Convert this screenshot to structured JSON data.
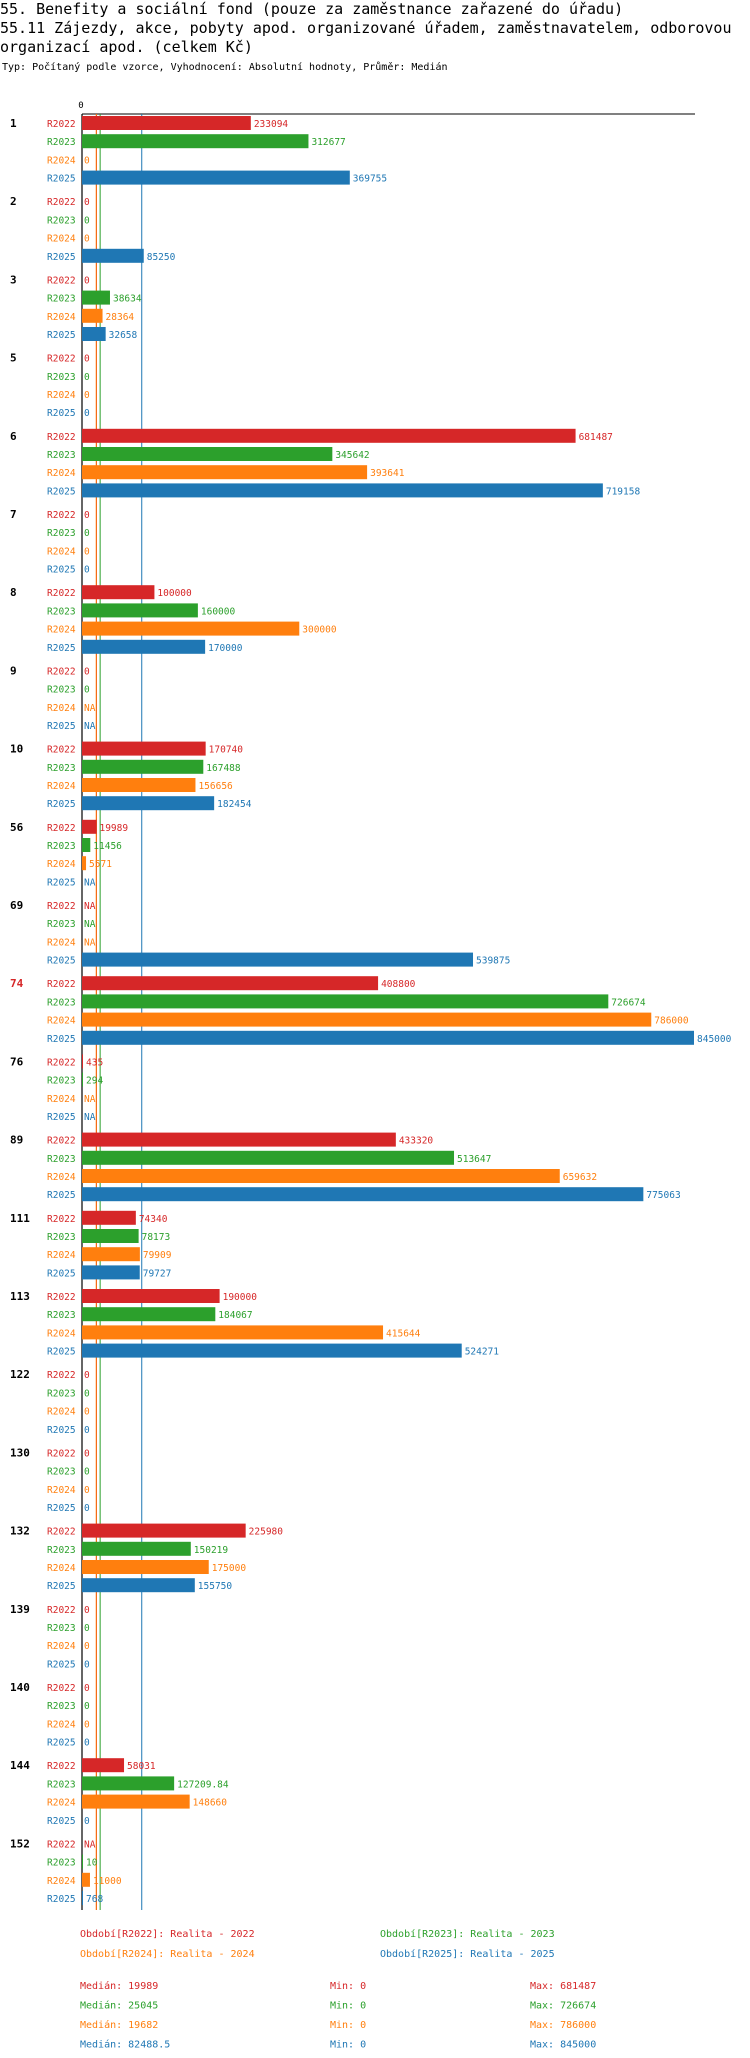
{
  "title": "55. Benefity a sociální fond (pouze za zaměstnance zařazené do úřadu)",
  "subtitle_lines": [
    "55.11 Zájezdy, akce, pobyty apod. organizované úřadem, zaměstnavatelem, odborovou",
    " organizací apod. (celkem Kč)"
  ],
  "meta": "Typ: Počítaný podle vzorce, Vyhodnocení: Absolutní hodnoty, Průměr: Medián",
  "colors": {
    "R2022": "#d62728",
    "R2023": "#2ca02c",
    "R2024": "#ff7f0e",
    "R2025": "#1f77b4",
    "highlight": "#d62728"
  },
  "chart_data": {
    "type": "bar",
    "orientation": "horizontal",
    "axis_zero_label": "0",
    "xlim": [
      0,
      845000
    ],
    "series_names": [
      "R2022",
      "R2023",
      "R2024",
      "R2025"
    ],
    "groups": [
      {
        "id": "1",
        "highlight": false,
        "values": [
          233094,
          312677,
          0,
          369755
        ],
        "labels": [
          "233094",
          "312677",
          "0",
          "369755"
        ]
      },
      {
        "id": "2",
        "highlight": false,
        "values": [
          0,
          0,
          0,
          85250
        ],
        "labels": [
          "0",
          "0",
          "0",
          "85250"
        ]
      },
      {
        "id": "3",
        "highlight": false,
        "values": [
          0,
          38634,
          28364,
          32658
        ],
        "labels": [
          "0",
          "38634",
          "28364",
          "32658"
        ]
      },
      {
        "id": "5",
        "highlight": false,
        "values": [
          0,
          0,
          0,
          0
        ],
        "labels": [
          "0",
          "0",
          "0",
          "0"
        ]
      },
      {
        "id": "6",
        "highlight": false,
        "values": [
          681487,
          345642,
          393641,
          719158
        ],
        "labels": [
          "681487",
          "345642",
          "393641",
          "719158"
        ]
      },
      {
        "id": "7",
        "highlight": false,
        "values": [
          0,
          0,
          0,
          0
        ],
        "labels": [
          "0",
          "0",
          "0",
          "0"
        ]
      },
      {
        "id": "8",
        "highlight": false,
        "values": [
          100000,
          160000,
          300000,
          170000
        ],
        "labels": [
          "100000",
          "160000",
          "300000",
          "170000"
        ]
      },
      {
        "id": "9",
        "highlight": false,
        "values": [
          0,
          0,
          null,
          null
        ],
        "labels": [
          "0",
          "0",
          "NA",
          "NA"
        ]
      },
      {
        "id": "10",
        "highlight": false,
        "values": [
          170740,
          167488,
          156656,
          182454
        ],
        "labels": [
          "170740",
          "167488",
          "156656",
          "182454"
        ]
      },
      {
        "id": "56",
        "highlight": false,
        "values": [
          19989,
          11456,
          5571,
          null
        ],
        "labels": [
          "19989",
          "11456",
          "5571",
          "NA"
        ]
      },
      {
        "id": "69",
        "highlight": false,
        "values": [
          null,
          null,
          null,
          539875
        ],
        "labels": [
          "NA",
          "NA",
          "NA",
          "539875"
        ]
      },
      {
        "id": "74",
        "highlight": true,
        "values": [
          408800,
          726674,
          786000,
          845000
        ],
        "labels": [
          "408800",
          "726674",
          "786000",
          "845000"
        ]
      },
      {
        "id": "76",
        "highlight": false,
        "values": [
          435,
          294,
          null,
          null
        ],
        "labels": [
          "435",
          "294",
          "NA",
          "NA"
        ]
      },
      {
        "id": "89",
        "highlight": false,
        "values": [
          433320,
          513647,
          659632,
          775063
        ],
        "labels": [
          "433320",
          "513647",
          "659632",
          "775063"
        ]
      },
      {
        "id": "111",
        "highlight": false,
        "values": [
          74340,
          78173,
          79909,
          79727
        ],
        "labels": [
          "74340",
          "78173",
          "79909",
          "79727"
        ]
      },
      {
        "id": "113",
        "highlight": false,
        "values": [
          190000,
          184067,
          415644,
          524271
        ],
        "labels": [
          "190000",
          "184067",
          "415644",
          "524271"
        ]
      },
      {
        "id": "122",
        "highlight": false,
        "values": [
          0,
          0,
          0,
          0
        ],
        "labels": [
          "0",
          "0",
          "0",
          "0"
        ]
      },
      {
        "id": "130",
        "highlight": false,
        "values": [
          0,
          0,
          0,
          0
        ],
        "labels": [
          "0",
          "0",
          "0",
          "0"
        ]
      },
      {
        "id": "132",
        "highlight": false,
        "values": [
          225980,
          150219,
          175000,
          155750
        ],
        "labels": [
          "225980",
          "150219",
          "175000",
          "155750"
        ]
      },
      {
        "id": "139",
        "highlight": false,
        "values": [
          0,
          0,
          0,
          0
        ],
        "labels": [
          "0",
          "0",
          "0",
          "0"
        ]
      },
      {
        "id": "140",
        "highlight": false,
        "values": [
          0,
          0,
          0,
          0
        ],
        "labels": [
          "0",
          "0",
          "0",
          "0"
        ]
      },
      {
        "id": "144",
        "highlight": false,
        "values": [
          58031,
          127209.84,
          148660,
          0
        ],
        "labels": [
          "58031",
          "127209.84",
          "148660",
          "0"
        ]
      },
      {
        "id": "152",
        "highlight": false,
        "values": [
          null,
          10,
          11000,
          768
        ],
        "labels": [
          "NA",
          "10",
          "11000",
          "768"
        ]
      }
    ],
    "median_lines": [
      19989,
      25045,
      19682,
      82488.5
    ],
    "legend": [
      {
        "key": "R2022",
        "text": "Období[R2022]: Realita - 2022"
      },
      {
        "key": "R2023",
        "text": "Období[R2023]: Realita - 2023"
      },
      {
        "key": "R2024",
        "text": "Období[R2024]: Realita - 2024"
      },
      {
        "key": "R2025",
        "text": "Období[R2025]: Realita - 2025"
      }
    ],
    "stats": [
      {
        "key": "R2022",
        "median": "Medián: 19989",
        "min": "Min: 0",
        "max": "Max: 681487"
      },
      {
        "key": "R2023",
        "median": "Medián: 25045",
        "min": "Min: 0",
        "max": "Max: 726674"
      },
      {
        "key": "R2024",
        "median": "Medián: 19682",
        "min": "Min: 0",
        "max": "Max: 786000"
      },
      {
        "key": "R2025",
        "median": "Medián: 82488.5",
        "min": "Min: 0",
        "max": "Max: 845000"
      }
    ]
  }
}
